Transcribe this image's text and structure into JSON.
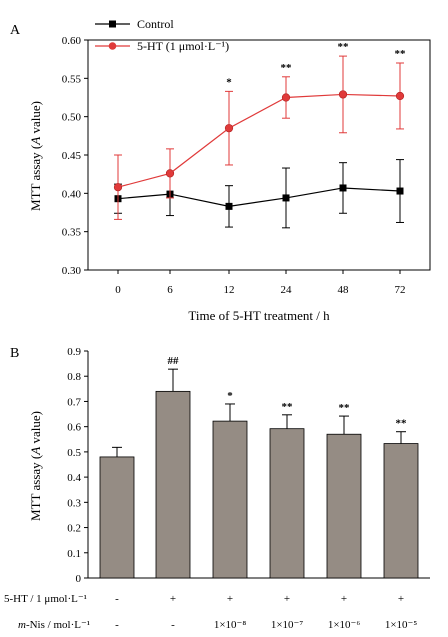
{
  "chart_data": [
    {
      "panel": "A",
      "type": "line",
      "x": [
        "0",
        "6",
        "12",
        "24",
        "48",
        "72"
      ],
      "xlabel": "Time of 5-HT treatment / h",
      "ylabel_parts": [
        "MTT assay (",
        "A",
        " value)"
      ],
      "ylim": [
        0.3,
        0.6
      ],
      "yticks": [
        "0.30",
        "0.35",
        "0.40",
        "0.45",
        "0.50",
        "0.55",
        "0.60"
      ],
      "legend_position": "top-left",
      "grid": false,
      "series": [
        {
          "name": "Control",
          "color": "#000000",
          "marker": "square",
          "values": [
            0.393,
            0.399,
            0.383,
            0.394,
            0.407,
            0.403
          ],
          "errors": [
            0.019,
            0.028,
            0.027,
            0.039,
            0.033,
            0.041
          ]
        },
        {
          "name": "5-HT (1 μmol·L⁻¹)",
          "color": "#e03a3a",
          "marker": "circle",
          "values": [
            0.408,
            0.426,
            0.485,
            0.525,
            0.529,
            0.527
          ],
          "errors": [
            0.042,
            0.032,
            0.048,
            0.027,
            0.05,
            0.043
          ]
        }
      ],
      "annotations": [
        "",
        "",
        "*",
        "**",
        "**",
        "**"
      ]
    },
    {
      "panel": "B",
      "type": "bar",
      "categories": [
        "1",
        "2",
        "3",
        "4",
        "5",
        "6"
      ],
      "values": [
        0.48,
        0.74,
        0.622,
        0.592,
        0.57,
        0.533
      ],
      "errors": [
        0.038,
        0.088,
        0.068,
        0.055,
        0.072,
        0.047
      ],
      "ylabel_parts": [
        "MTT assay (",
        "A",
        " value)"
      ],
      "ylim": [
        0,
        0.9
      ],
      "yticks": [
        "0",
        "0.1",
        "0.2",
        "0.3",
        "0.4",
        "0.5",
        "0.6",
        "0.7",
        "0.8",
        "0.9"
      ],
      "bar_color": "#958c84",
      "grid": false,
      "annotations": [
        "",
        "##",
        "*",
        "**",
        "**",
        "**"
      ],
      "conditions": [
        {
          "label": "5-HT / 1 μmol·L⁻¹",
          "values": [
            "-",
            "+",
            "+",
            "+",
            "+",
            "+"
          ]
        },
        {
          "label_prefix": "m",
          "label_suffix": "-Nis / mol·L⁻¹",
          "values": [
            "-",
            "-",
            "1×10⁻⁸",
            "1×10⁻⁷",
            "1×10⁻⁶",
            "1×10⁻⁵"
          ]
        }
      ]
    }
  ]
}
